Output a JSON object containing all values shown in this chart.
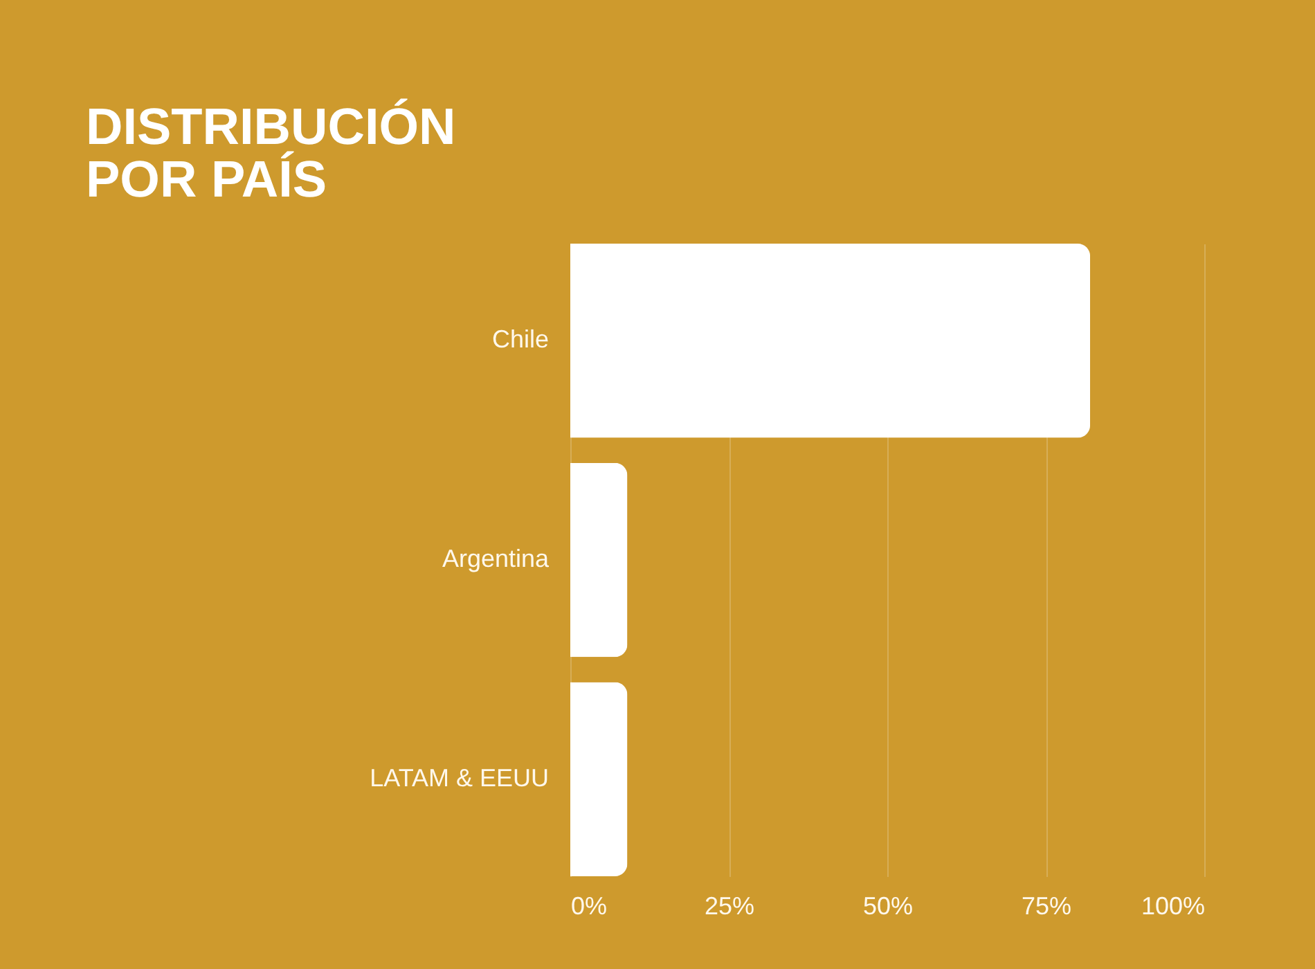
{
  "chart_data": {
    "type": "bar",
    "orientation": "horizontal",
    "title": "DISTRIBUCIÓN POR PAÍS",
    "categories": [
      "Chile",
      "Argentina",
      "LATAM & EEUU"
    ],
    "values": [
      82,
      9,
      9
    ],
    "color": "#ffffff",
    "xlim": [
      0,
      100
    ],
    "xticks": [
      {
        "value": 0,
        "label": "0%"
      },
      {
        "value": 25,
        "label": "25%"
      },
      {
        "value": 50,
        "label": "50%"
      },
      {
        "value": 75,
        "label": "75%"
      },
      {
        "value": 100,
        "label": "100%"
      }
    ],
    "grid": "x"
  }
}
